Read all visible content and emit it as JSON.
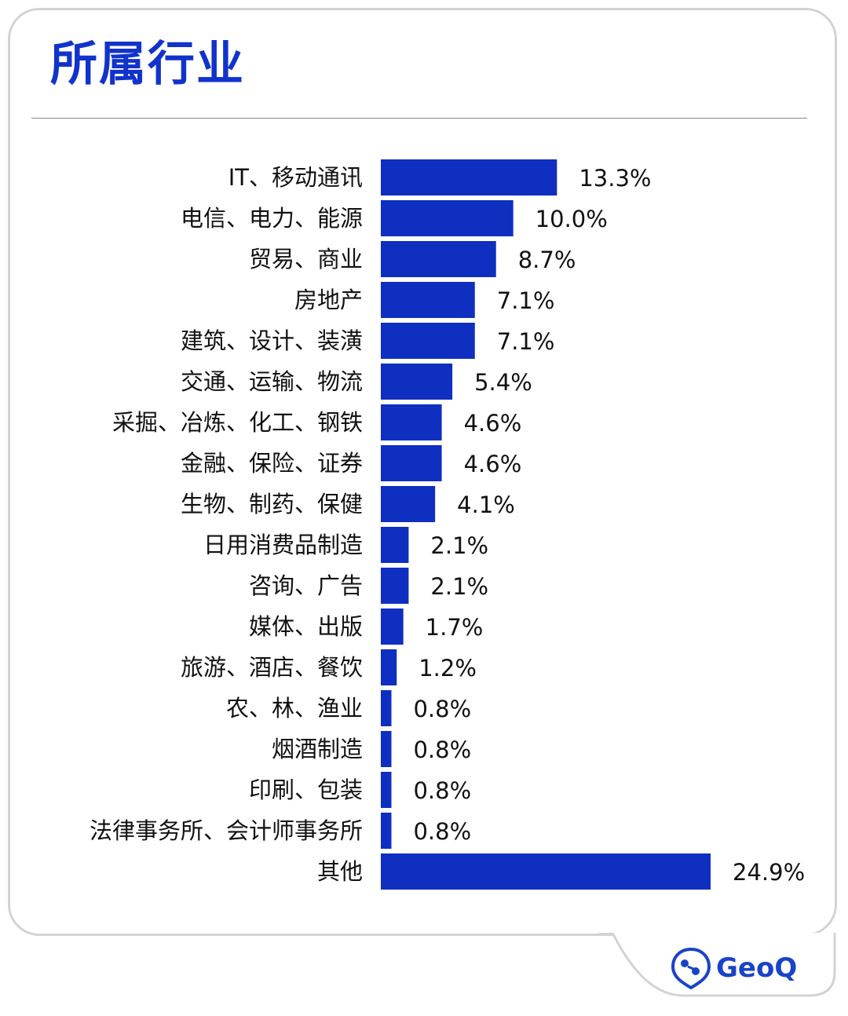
{
  "page": {
    "title": "所属行业",
    "brand": "GeoQ"
  },
  "colors": {
    "bar": "#0f2fc0",
    "title": "#1133cc",
    "text": "#111111"
  },
  "chart_data": {
    "type": "bar",
    "orientation": "horizontal",
    "categories": [
      "IT、移动通讯",
      "电信、电力、能源",
      "贸易、商业",
      "房地产",
      "建筑、设计、装潢",
      "交通、运输、物流",
      "采掘、冶炼、化工、钢铁",
      "金融、保险、证券",
      "生物、制药、保健",
      "日用消费品制造",
      "咨询、广告",
      "媒体、出版",
      "旅游、酒店、餐饮",
      "农、林、渔业",
      "烟酒制造",
      "印刷、包装",
      "法律事务所、会计师事务所",
      "其他"
    ],
    "values": [
      13.3,
      10.0,
      8.7,
      7.1,
      7.1,
      5.4,
      4.6,
      4.6,
      4.1,
      2.1,
      2.1,
      1.7,
      1.2,
      0.8,
      0.8,
      0.8,
      0.8,
      24.9
    ],
    "labels": [
      "13.3%",
      "10.0%",
      "8.7%",
      "7.1%",
      "7.1%",
      "5.4%",
      "4.6%",
      "4.6%",
      "4.1%",
      "2.1%",
      "2.1%",
      "1.7%",
      "1.2%",
      "0.8%",
      "0.8%",
      "0.8%",
      "0.8%",
      "24.9%"
    ],
    "grid": false,
    "legend": "none"
  }
}
